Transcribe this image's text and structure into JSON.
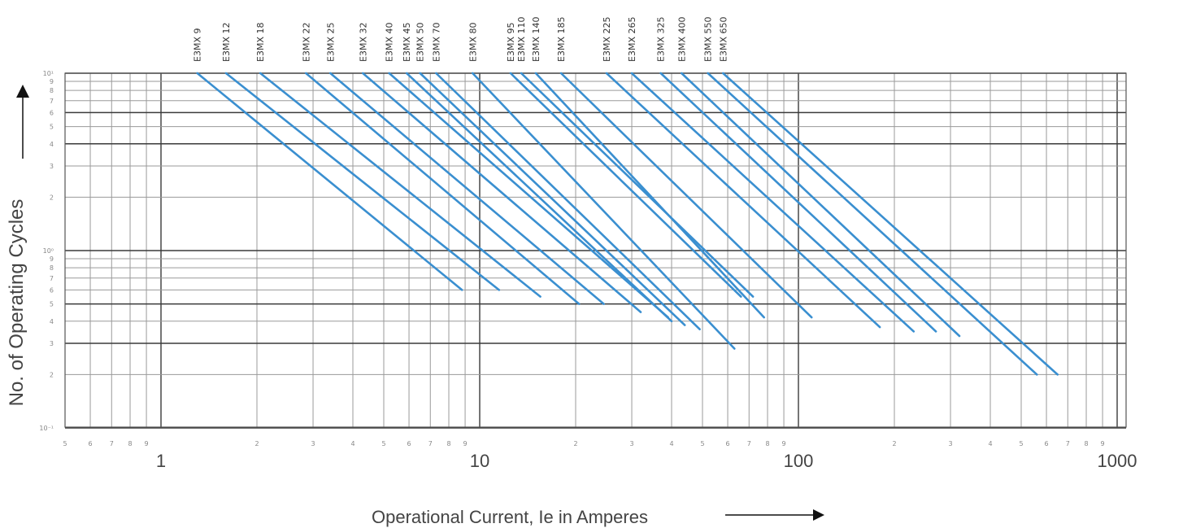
{
  "chart_data": {
    "type": "line",
    "xscale": "log",
    "yscale": "log",
    "xlim": [
      0.5,
      1000
    ],
    "ylim": [
      0.1,
      10
    ],
    "grid": true,
    "xlabel": "Operational Current, Ie in Amperes",
    "ylabel": "No. of Operating Cycles",
    "x_minor_tick_labels": [
      "5",
      "6",
      "7",
      "8",
      "9",
      "2",
      "3",
      "4",
      "5",
      "6",
      "7",
      "8",
      "9",
      "2",
      "3",
      "4",
      "5",
      "6",
      "7",
      "8",
      "9",
      "2",
      "3",
      "4",
      "5",
      "6",
      "7",
      "8",
      "9"
    ],
    "x_major_tick_labels": [
      "1",
      "10",
      "100",
      "1000"
    ],
    "y_tick_labels": [
      "10¹",
      "9",
      "8",
      "7",
      "6",
      "5",
      "4",
      "3",
      "2",
      "10⁰",
      "9",
      "8",
      "7",
      "6",
      "5",
      "4",
      "3",
      "2",
      "10⁻¹"
    ],
    "series": [
      {
        "name": "E3MX 9",
        "x": [
          1.3,
          8.8
        ],
        "y": [
          10,
          0.6
        ]
      },
      {
        "name": "E3MX 12",
        "x": [
          1.6,
          11.5
        ],
        "y": [
          10,
          0.6
        ]
      },
      {
        "name": "E3MX 18",
        "x": [
          2.05,
          15.5
        ],
        "y": [
          10,
          0.55
        ]
      },
      {
        "name": "E3MX 22",
        "x": [
          2.85,
          20.5
        ],
        "y": [
          10,
          0.5
        ]
      },
      {
        "name": "E3MX 25",
        "x": [
          3.4,
          24.5
        ],
        "y": [
          10,
          0.5
        ]
      },
      {
        "name": "E3MX 32",
        "x": [
          4.3,
          32
        ],
        "y": [
          10,
          0.45
        ]
      },
      {
        "name": "E3MX 40",
        "x": [
          5.2,
          39
        ],
        "y": [
          10,
          0.42
        ]
      },
      {
        "name": "E3MX 45",
        "x": [
          5.9,
          40
        ],
        "y": [
          10,
          0.4
        ]
      },
      {
        "name": "E3MX 50",
        "x": [
          6.5,
          44
        ],
        "y": [
          10,
          0.38
        ]
      },
      {
        "name": "E3MX 70",
        "x": [
          7.3,
          49
        ],
        "y": [
          10,
          0.36
        ]
      },
      {
        "name": "E3MX 80",
        "x": [
          9.5,
          63
        ],
        "y": [
          10,
          0.28
        ]
      },
      {
        "name": "E3MX 95",
        "x": [
          12.5,
          66
        ],
        "y": [
          10,
          0.55
        ]
      },
      {
        "name": "E3MX 110",
        "x": [
          13.5,
          72
        ],
        "y": [
          10,
          0.55
        ]
      },
      {
        "name": "E3MX 140",
        "x": [
          15,
          78
        ],
        "y": [
          10,
          0.42
        ]
      },
      {
        "name": "E3MX 185",
        "x": [
          18,
          110
        ],
        "y": [
          10,
          0.42
        ]
      },
      {
        "name": "E3MX 225",
        "x": [
          25,
          180
        ],
        "y": [
          10,
          0.37
        ]
      },
      {
        "name": "E3MX 265",
        "x": [
          30,
          230
        ],
        "y": [
          10,
          0.35
        ]
      },
      {
        "name": "E3MX 325",
        "x": [
          37,
          270
        ],
        "y": [
          10,
          0.35
        ]
      },
      {
        "name": "E3MX 400",
        "x": [
          43,
          320
        ],
        "y": [
          10,
          0.33
        ]
      },
      {
        "name": "E3MX 550",
        "x": [
          52,
          560
        ],
        "y": [
          10,
          0.2
        ]
      },
      {
        "name": "E3MX 650",
        "x": [
          58,
          650
        ],
        "y": [
          10,
          0.2
        ]
      }
    ]
  }
}
